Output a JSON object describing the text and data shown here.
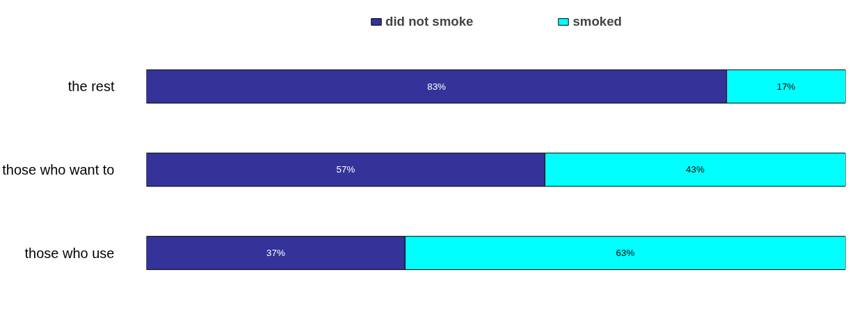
{
  "chart_data": {
    "type": "bar",
    "orientation": "horizontal",
    "stacked": true,
    "categories": [
      "the rest",
      "those who want to",
      "those who use"
    ],
    "series": [
      {
        "name": "did not smoke",
        "color": "#333399",
        "values": [
          83,
          57,
          37
        ],
        "value_labels": [
          "83%",
          "57%",
          "37%"
        ]
      },
      {
        "name": "smoked",
        "color": "#00ffff",
        "values": [
          17,
          43,
          63
        ],
        "value_labels": [
          "17%",
          "43%",
          "63%"
        ]
      }
    ],
    "legend": "top",
    "grid": false,
    "tick_labels": "y"
  }
}
